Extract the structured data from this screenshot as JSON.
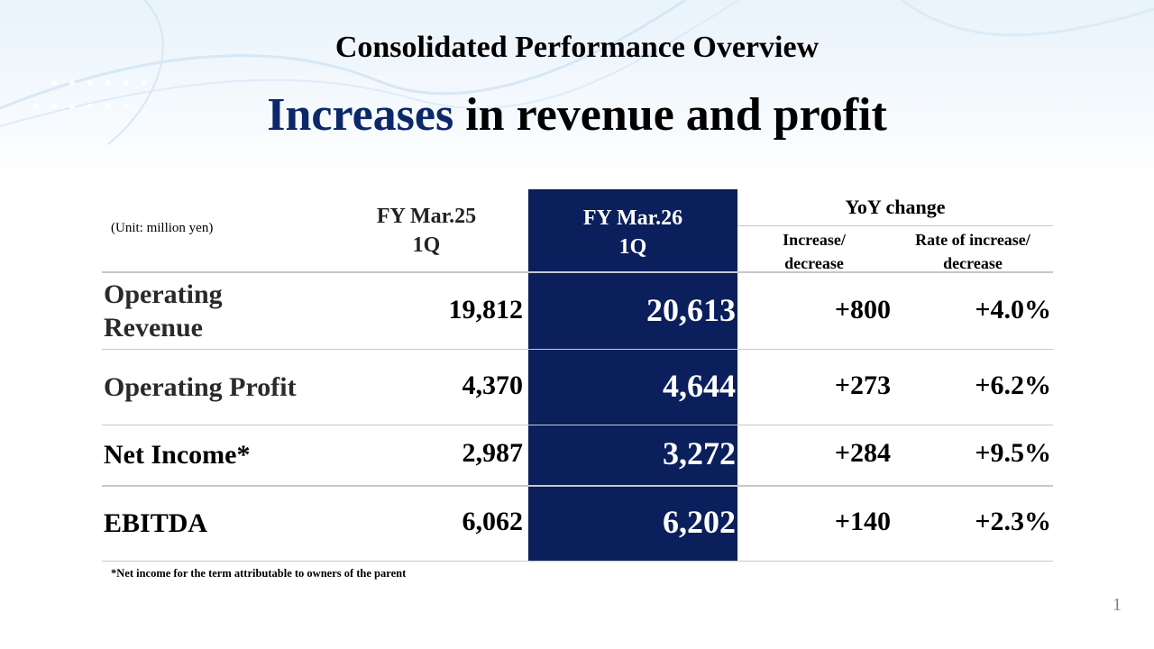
{
  "slide": {
    "title": "Consolidated Performance Overview",
    "headline_accent": "Increases",
    "headline_rest": " in revenue and profit",
    "page_number": "1"
  },
  "table": {
    "unit_note": "(Unit: million yen)",
    "headers": {
      "prev_line1": "FY Mar.25",
      "prev_line2": "1Q",
      "cur_line1": "FY Mar.26",
      "cur_line2": "1Q",
      "yoy": "YoY change",
      "increase_line1": "Increase/",
      "increase_line2": "decrease",
      "rate_line1": "Rate of increase/",
      "rate_line2": "decrease"
    },
    "rows": [
      {
        "label_line1": "Operating",
        "label_line2": "Revenue",
        "prev": "19,812",
        "cur": "20,613",
        "change": "+800",
        "rate": "+4.0%"
      },
      {
        "label": "Operating Profit",
        "prev": "4,370",
        "cur": "4,644",
        "change": "+273",
        "rate": "+6.2%"
      },
      {
        "label": "Net Income*",
        "prev": "2,987",
        "cur": "3,272",
        "change": "+284",
        "rate": "+9.5%"
      },
      {
        "label": "EBITDA",
        "prev": "6,062",
        "cur": "6,202",
        "change": "+140",
        "rate": "+2.3%"
      }
    ],
    "footnote": "*Net income for the term attributable to owners of the parent"
  },
  "colors": {
    "accent": "#0d2869",
    "highlight_column": "#0a1f5c"
  }
}
